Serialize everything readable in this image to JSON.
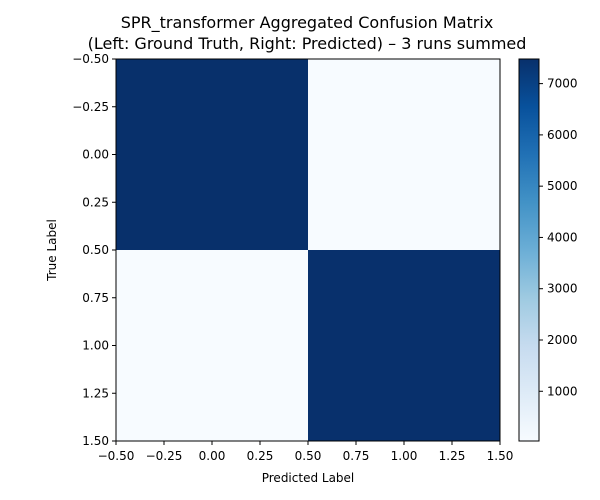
{
  "chart_data": {
    "type": "heatmap",
    "title_line1": "SPR_transformer Aggregated Confusion Matrix",
    "title_line2": "(Left: Ground Truth, Right: Predicted) – 3 runs summed",
    "xlabel": "Predicted Label",
    "ylabel": "True Label",
    "xlim": [
      -0.5,
      1.5
    ],
    "ylim": [
      1.5,
      -0.5
    ],
    "xticks": [
      -0.5,
      -0.25,
      0.0,
      0.25,
      0.5,
      0.75,
      1.0,
      1.25,
      1.5
    ],
    "xtick_labels": [
      "−0.50",
      "−0.25",
      "0.00",
      "0.25",
      "0.50",
      "0.75",
      "1.00",
      "1.25",
      "1.50"
    ],
    "yticks": [
      -0.5,
      -0.25,
      0.0,
      0.25,
      0.5,
      0.75,
      1.0,
      1.25,
      1.5
    ],
    "ytick_labels": [
      "−0.50",
      "−0.25",
      "0.00",
      "0.25",
      "0.50",
      "0.75",
      "1.00",
      "1.25",
      "1.50"
    ],
    "matrix": [
      [
        7480,
        40
      ],
      [
        30,
        7470
      ]
    ],
    "colormap": "Blues",
    "colorbar": {
      "vmin": 30,
      "vmax": 7480,
      "ticks": [
        1000,
        2000,
        3000,
        4000,
        5000,
        6000,
        7000
      ],
      "tick_labels": [
        "1000",
        "2000",
        "3000",
        "4000",
        "5000",
        "6000",
        "7000"
      ]
    },
    "grid": false
  }
}
